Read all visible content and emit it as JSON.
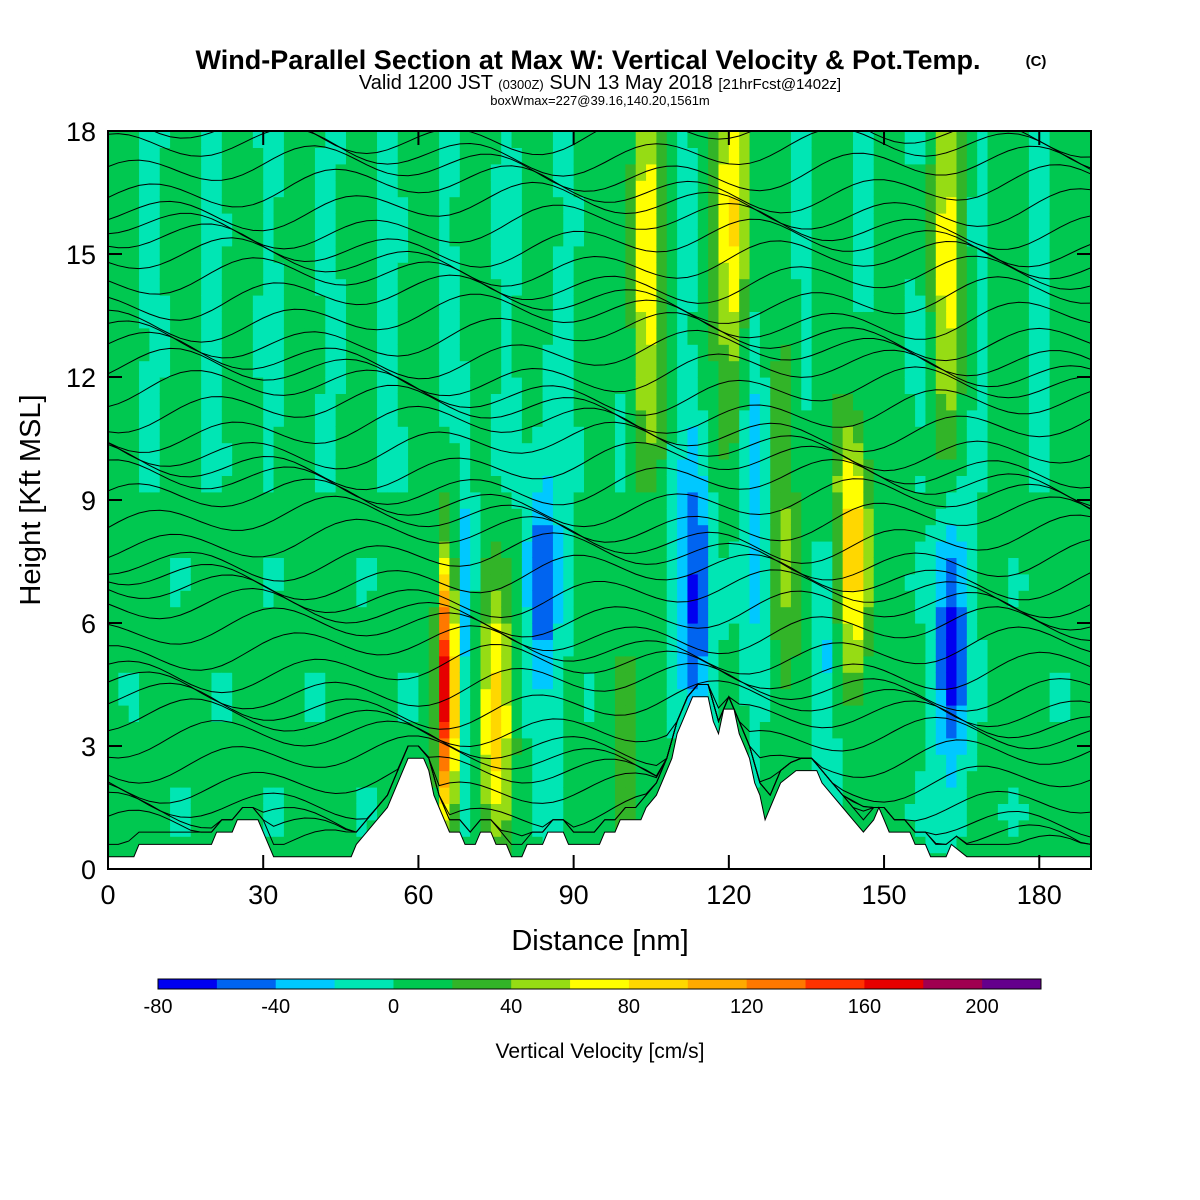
{
  "chart_data": {
    "type": "heatmap",
    "title": "Wind-Parallel Section at Max W: Vertical Velocity & Pot.Temp.",
    "title_mark": "(C)",
    "subtitle_main": "Valid 1200 JST",
    "subtitle_utc": "(0300Z)",
    "subtitle_date": "SUN 13 May 2018",
    "subtitle_fcst": "[21hrFcst@1402z]",
    "subtitle_box": "boxWmax=227@39.16,140.20,1561m",
    "xlabel": "Distance [nm]",
    "ylabel": "Height [Kft MSL]",
    "xlim": [
      0,
      190
    ],
    "ylim": [
      0,
      18
    ],
    "x_ticks": [
      "0",
      "30",
      "60",
      "90",
      "120",
      "150",
      "180"
    ],
    "y_ticks": [
      "0",
      "3",
      "6",
      "9",
      "12",
      "15",
      "18"
    ],
    "colorbar": {
      "title": "Vertical Velocity [cm/s]",
      "labels": [
        "-80",
        "-40",
        "0",
        "40",
        "80",
        "120",
        "160",
        "200"
      ],
      "min": -80,
      "max": 220,
      "step": 20,
      "colors": [
        "#0000f0",
        "#0064f0",
        "#00c8ff",
        "#00e6b4",
        "#00c850",
        "#32b428",
        "#96dc14",
        "#ffff00",
        "#ffd700",
        "#ffaa00",
        "#ff7800",
        "#ff3200",
        "#e60000",
        "#a00050",
        "#64008c"
      ]
    },
    "terrain": [
      [
        0,
        0.3
      ],
      [
        5,
        0.3
      ],
      [
        6,
        0.6
      ],
      [
        20,
        0.6
      ],
      [
        21,
        0.9
      ],
      [
        24,
        0.9
      ],
      [
        25,
        1.2
      ],
      [
        29,
        1.2
      ],
      [
        30,
        0.9
      ],
      [
        32,
        0.3
      ],
      [
        47,
        0.3
      ],
      [
        48,
        0.6
      ],
      [
        50,
        0.9
      ],
      [
        52,
        1.2
      ],
      [
        54,
        1.5
      ],
      [
        56,
        2.1
      ],
      [
        57,
        2.4
      ],
      [
        58,
        2.7
      ],
      [
        61,
        2.7
      ],
      [
        62,
        2.4
      ],
      [
        63,
        1.8
      ],
      [
        64,
        1.5
      ],
      [
        65,
        1.2
      ],
      [
        66,
        0.9
      ],
      [
        68,
        0.9
      ],
      [
        69,
        0.6
      ],
      [
        71,
        0.6
      ],
      [
        72,
        0.9
      ],
      [
        74,
        0.9
      ],
      [
        75,
        0.6
      ],
      [
        77,
        0.6
      ],
      [
        78,
        0.3
      ],
      [
        80,
        0.3
      ],
      [
        81,
        0.6
      ],
      [
        84,
        0.6
      ],
      [
        85,
        0.9
      ],
      [
        88,
        0.9
      ],
      [
        89,
        0.6
      ],
      [
        95,
        0.6
      ],
      [
        96,
        0.9
      ],
      [
        98,
        0.9
      ],
      [
        99,
        1.2
      ],
      [
        103,
        1.2
      ],
      [
        104,
        1.5
      ],
      [
        106,
        1.8
      ],
      [
        107,
        2.1
      ],
      [
        108,
        2.4
      ],
      [
        109,
        2.7
      ],
      [
        110,
        3.3
      ],
      [
        111,
        3.6
      ],
      [
        112,
        3.9
      ],
      [
        113,
        4.2
      ],
      [
        116,
        4.2
      ],
      [
        117,
        3.6
      ],
      [
        118,
        3.3
      ],
      [
        119,
        3.9
      ],
      [
        121,
        3.9
      ],
      [
        122,
        3.3
      ],
      [
        123,
        3.0
      ],
      [
        124,
        2.7
      ],
      [
        125,
        2.1
      ],
      [
        126,
        1.8
      ],
      [
        127,
        1.2
      ],
      [
        128,
        1.5
      ],
      [
        129,
        1.8
      ],
      [
        130,
        2.1
      ],
      [
        133,
        2.4
      ],
      [
        137,
        2.4
      ],
      [
        138,
        2.1
      ],
      [
        140,
        1.8
      ],
      [
        142,
        1.5
      ],
      [
        144,
        1.2
      ],
      [
        146,
        0.9
      ],
      [
        148,
        1.2
      ],
      [
        149,
        1.5
      ],
      [
        150,
        1.2
      ],
      [
        151,
        0.9
      ],
      [
        155,
        0.9
      ],
      [
        156,
        0.6
      ],
      [
        158,
        0.6
      ],
      [
        159,
        0.3
      ],
      [
        162,
        0.3
      ],
      [
        163,
        0.6
      ],
      [
        166,
        0.3
      ],
      [
        190,
        0.3
      ]
    ],
    "cells": [
      {
        "x": 65.5,
        "y": 4.4,
        "v": 180
      },
      {
        "x": 75,
        "y": 3.8,
        "v": 90
      },
      {
        "x": 84,
        "y": 7.0,
        "v": -60
      },
      {
        "x": 104,
        "y": 15,
        "v": 70
      },
      {
        "x": 113.5,
        "y": 6.8,
        "v": -70
      },
      {
        "x": 121,
        "y": 16,
        "v": 80
      },
      {
        "x": 144,
        "y": 7.8,
        "v": 95
      },
      {
        "x": 163,
        "y": 5.5,
        "v": -75
      },
      {
        "x": 162,
        "y": 15,
        "v": 60
      }
    ]
  }
}
